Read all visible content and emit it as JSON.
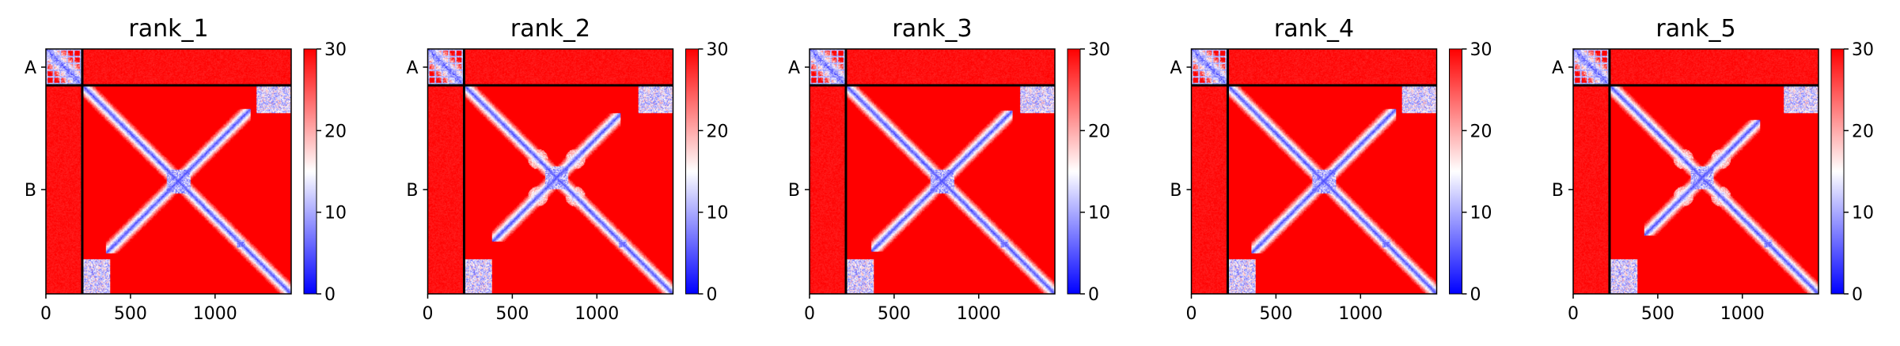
{
  "chart_data": {
    "type": "heatmap",
    "figure_description_note": "",
    "colormap": {
      "low": "#0000ff",
      "mid": "#ffffff",
      "high": "#ff0000",
      "vmin": 0,
      "vmax": 30
    },
    "colorbar_ticks": [
      0,
      10,
      20,
      30
    ],
    "x_ticks": [
      0,
      500,
      1000
    ],
    "x_range": [
      0,
      1450
    ],
    "chain_boundary": 215,
    "chains": [
      {
        "label": "A",
        "start": 0,
        "end": 215
      },
      {
        "label": "B",
        "start": 215,
        "end": 1450
      }
    ],
    "panels": [
      {
        "title": "rank_1",
        "center": 780,
        "arm": 430,
        "feature_extent": 1.0,
        "arm_width": 26,
        "lobes": false
      },
      {
        "title": "rank_2",
        "center": 760,
        "arm": 400,
        "feature_extent": 0.95,
        "arm_width": 26,
        "lobes": true
      },
      {
        "title": "rank_3",
        "center": 780,
        "arm": 420,
        "feature_extent": 1.0,
        "arm_width": 26,
        "lobes": false
      },
      {
        "title": "rank_4",
        "center": 780,
        "arm": 430,
        "feature_extent": 1.0,
        "arm_width": 26,
        "lobes": false
      },
      {
        "title": "rank_5",
        "center": 760,
        "arm": 380,
        "feature_extent": 0.9,
        "arm_width": 26,
        "lobes": true
      }
    ]
  }
}
